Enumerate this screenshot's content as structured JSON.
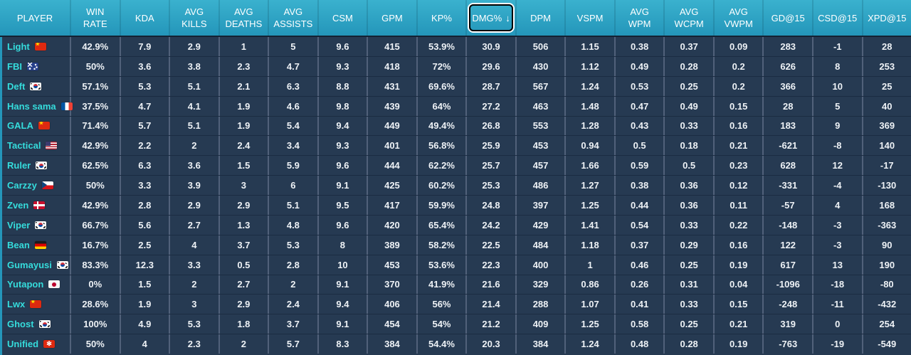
{
  "colors": {
    "header_top": "#3ab1ce",
    "header_bottom": "#2496ba",
    "body_bg": "#263a52",
    "grid_line": "#51617a",
    "row_divider": "#1b2c42",
    "cell_text": "#eef2f6",
    "player_name": "#35dcdc",
    "header_text": "#ffffff",
    "focus_ring_inner": "#000000",
    "focus_ring_outer": "#ffffff"
  },
  "table": {
    "columns": [
      {
        "id": "player",
        "label": "PLAYER"
      },
      {
        "id": "win_rate",
        "label": "WIN\nRATE"
      },
      {
        "id": "kda",
        "label": "KDA"
      },
      {
        "id": "avg_kills",
        "label": "AVG\nKILLS"
      },
      {
        "id": "avg_deaths",
        "label": "AVG\nDEATHS"
      },
      {
        "id": "avg_assists",
        "label": "AVG\nASSISTS"
      },
      {
        "id": "csm",
        "label": "CSM"
      },
      {
        "id": "gpm",
        "label": "GPM"
      },
      {
        "id": "kp_pct",
        "label": "KP%"
      },
      {
        "id": "dmg_pct",
        "label": "DMG%"
      },
      {
        "id": "dpm",
        "label": "DPM"
      },
      {
        "id": "vspm",
        "label": "VSPM"
      },
      {
        "id": "avg_wpm",
        "label": "AVG\nWPM"
      },
      {
        "id": "avg_wcpm",
        "label": "AVG\nWCPM"
      },
      {
        "id": "avg_vwpm",
        "label": "AVG\nVWPM"
      },
      {
        "id": "gd15",
        "label": "GD@15"
      },
      {
        "id": "csd15",
        "label": "CSD@15"
      },
      {
        "id": "xpd15",
        "label": "XPD@15"
      }
    ],
    "sort": {
      "column_id": "dmg_pct",
      "direction": "descending",
      "arrow": "↓",
      "focused": true
    },
    "rows": [
      {
        "player": "Light",
        "flag": "cn",
        "values": [
          "42.9%",
          "7.9",
          "2.9",
          "1",
          "5",
          "9.6",
          "415",
          "53.9%",
          "30.9",
          "506",
          "1.15",
          "0.38",
          "0.37",
          "0.09",
          "283",
          "-1",
          "28"
        ]
      },
      {
        "player": "FBI",
        "flag": "au",
        "values": [
          "50%",
          "3.6",
          "3.8",
          "2.3",
          "4.7",
          "9.3",
          "418",
          "72%",
          "29.6",
          "430",
          "1.12",
          "0.49",
          "0.28",
          "0.2",
          "626",
          "8",
          "253"
        ]
      },
      {
        "player": "Deft",
        "flag": "kr",
        "values": [
          "57.1%",
          "5.3",
          "5.1",
          "2.1",
          "6.3",
          "8.8",
          "431",
          "69.6%",
          "28.7",
          "567",
          "1.24",
          "0.53",
          "0.25",
          "0.2",
          "366",
          "10",
          "25"
        ]
      },
      {
        "player": "Hans sama",
        "flag": "fr",
        "values": [
          "37.5%",
          "4.7",
          "4.1",
          "1.9",
          "4.6",
          "9.8",
          "439",
          "64%",
          "27.2",
          "463",
          "1.48",
          "0.47",
          "0.49",
          "0.15",
          "28",
          "5",
          "40"
        ]
      },
      {
        "player": "GALA",
        "flag": "cn",
        "values": [
          "71.4%",
          "5.7",
          "5.1",
          "1.9",
          "5.4",
          "9.4",
          "449",
          "49.4%",
          "26.8",
          "553",
          "1.28",
          "0.43",
          "0.33",
          "0.16",
          "183",
          "9",
          "369"
        ]
      },
      {
        "player": "Tactical",
        "flag": "us",
        "values": [
          "42.9%",
          "2.2",
          "2",
          "2.4",
          "3.4",
          "9.3",
          "401",
          "56.8%",
          "25.9",
          "453",
          "0.94",
          "0.5",
          "0.18",
          "0.21",
          "-621",
          "-8",
          "140"
        ]
      },
      {
        "player": "Ruler",
        "flag": "kr",
        "values": [
          "62.5%",
          "6.3",
          "3.6",
          "1.5",
          "5.9",
          "9.6",
          "444",
          "62.2%",
          "25.7",
          "457",
          "1.66",
          "0.59",
          "0.5",
          "0.23",
          "628",
          "12",
          "-17"
        ]
      },
      {
        "player": "Carzzy",
        "flag": "cz",
        "values": [
          "50%",
          "3.3",
          "3.9",
          "3",
          "6",
          "9.1",
          "425",
          "60.2%",
          "25.3",
          "486",
          "1.27",
          "0.38",
          "0.36",
          "0.12",
          "-331",
          "-4",
          "-130"
        ]
      },
      {
        "player": "Zven",
        "flag": "dk",
        "values": [
          "42.9%",
          "2.8",
          "2.9",
          "2.9",
          "5.1",
          "9.5",
          "417",
          "59.9%",
          "24.8",
          "397",
          "1.25",
          "0.44",
          "0.36",
          "0.11",
          "-57",
          "4",
          "168"
        ]
      },
      {
        "player": "Viper",
        "flag": "kr",
        "values": [
          "66.7%",
          "5.6",
          "2.7",
          "1.3",
          "4.8",
          "9.6",
          "420",
          "65.4%",
          "24.2",
          "429",
          "1.41",
          "0.54",
          "0.33",
          "0.22",
          "-148",
          "-3",
          "-363"
        ]
      },
      {
        "player": "Bean",
        "flag": "de",
        "values": [
          "16.7%",
          "2.5",
          "4",
          "3.7",
          "5.3",
          "8",
          "389",
          "58.2%",
          "22.5",
          "484",
          "1.18",
          "0.37",
          "0.29",
          "0.16",
          "122",
          "-3",
          "90"
        ]
      },
      {
        "player": "Gumayusi",
        "flag": "kr",
        "values": [
          "83.3%",
          "12.3",
          "3.3",
          "0.5",
          "2.8",
          "10",
          "453",
          "53.6%",
          "22.3",
          "400",
          "1",
          "0.46",
          "0.25",
          "0.19",
          "617",
          "13",
          "190"
        ]
      },
      {
        "player": "Yutapon",
        "flag": "jp",
        "values": [
          "0%",
          "1.5",
          "2",
          "2.7",
          "2",
          "9.1",
          "370",
          "41.9%",
          "21.6",
          "329",
          "0.86",
          "0.26",
          "0.31",
          "0.04",
          "-1096",
          "-18",
          "-80"
        ]
      },
      {
        "player": "Lwx",
        "flag": "cn",
        "values": [
          "28.6%",
          "1.9",
          "3",
          "2.9",
          "2.4",
          "9.4",
          "406",
          "56%",
          "21.4",
          "288",
          "1.07",
          "0.41",
          "0.33",
          "0.15",
          "-248",
          "-11",
          "-432"
        ]
      },
      {
        "player": "Ghost",
        "flag": "kr",
        "values": [
          "100%",
          "4.9",
          "5.3",
          "1.8",
          "3.7",
          "9.1",
          "454",
          "54%",
          "21.2",
          "409",
          "1.25",
          "0.58",
          "0.25",
          "0.21",
          "319",
          "0",
          "254"
        ]
      },
      {
        "player": "Unified",
        "flag": "hk",
        "values": [
          "50%",
          "4",
          "2.3",
          "2",
          "5.7",
          "8.3",
          "384",
          "54.4%",
          "20.3",
          "384",
          "1.24",
          "0.48",
          "0.28",
          "0.19",
          "-763",
          "-19",
          "-549"
        ]
      }
    ]
  }
}
